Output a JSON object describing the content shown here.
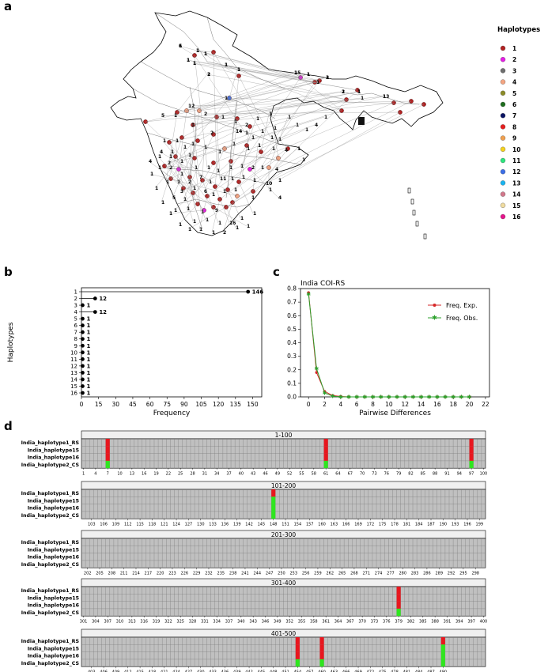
{
  "panel_letters": [
    "a",
    "b",
    "c",
    "d"
  ],
  "map": {
    "legend_title": "Haplotypes",
    "legend": [
      {
        "label": "1",
        "color": "#b22222"
      },
      {
        "label": "2",
        "color": "#e61ee6"
      },
      {
        "label": "3",
        "color": "#6e6e6e"
      },
      {
        "label": "4",
        "color": "#f4a582"
      },
      {
        "label": "5",
        "color": "#8c8c28"
      },
      {
        "label": "6",
        "color": "#1e6e1e"
      },
      {
        "label": "7",
        "color": "#0a1464"
      },
      {
        "label": "8",
        "color": "#e61e1e"
      },
      {
        "label": "9",
        "color": "#f0a050"
      },
      {
        "label": "10",
        "color": "#f5d21e"
      },
      {
        "label": "11",
        "color": "#2de67d"
      },
      {
        "label": "12",
        "color": "#3c6ee6"
      },
      {
        "label": "13",
        "color": "#19b4f0"
      },
      {
        "label": "14",
        "color": "#d2788c"
      },
      {
        "label": "15",
        "color": "#f0dca0"
      },
      {
        "label": "16",
        "color": "#e6148c"
      }
    ],
    "site_labels": [
      "1",
      "1",
      "1",
      "1",
      "1",
      "1",
      "1",
      "2",
      "1",
      "1",
      "3",
      "1",
      "1",
      "1",
      "13",
      "1",
      "5",
      "1",
      "12",
      "1",
      "2",
      "1",
      "2",
      "1",
      "1",
      "2",
      "1",
      "1",
      "1",
      "1",
      "1",
      "1",
      "1",
      "1",
      "4",
      "1",
      "1",
      "1",
      "1",
      "1",
      "1",
      "1",
      "1",
      "1",
      "1",
      "4",
      "1",
      "1",
      "4",
      "1",
      "1",
      "1",
      "1",
      "2",
      "1",
      "1",
      "1",
      "1",
      "1",
      "1",
      "2",
      "1",
      "4",
      "2",
      "1",
      "1",
      "1",
      "1",
      "2",
      "7",
      "1",
      "11",
      "1",
      "1",
      "1",
      "10",
      "1",
      "3",
      "1",
      "1",
      "5",
      "1",
      "6",
      "1",
      "1",
      "1",
      "1",
      "1",
      "4",
      "1",
      "1",
      "1",
      "9",
      "1",
      "1",
      "1",
      "16",
      "1",
      "1",
      "1",
      "1",
      "1",
      "2",
      "1",
      "1",
      "1",
      "1",
      "4",
      "1",
      "1",
      "1",
      "14",
      "1",
      "1",
      "1",
      "6",
      "1",
      "1",
      "1",
      "1",
      "1",
      "1",
      "1",
      "15",
      "1",
      "1",
      "1",
      "2",
      "1",
      "1"
    ]
  },
  "chart_data": [
    {
      "type": "lollipop",
      "ylabel": "Haplotypes",
      "xlabel": "Frequency",
      "categories": [
        "1",
        "2",
        "3",
        "4",
        "5",
        "6",
        "7",
        "8",
        "9",
        "10",
        "11",
        "12",
        "13",
        "14",
        "15",
        "16"
      ],
      "values": [
        146,
        12,
        1,
        12,
        1,
        1,
        1,
        1,
        1,
        1,
        1,
        1,
        1,
        1,
        1,
        1
      ],
      "xticks": [
        0,
        15,
        30,
        45,
        60,
        75,
        90,
        105,
        120,
        135,
        150
      ],
      "xlim": [
        0,
        158
      ]
    },
    {
      "type": "line",
      "title": "India COI-RS",
      "xlabel": "Pairwise Differences",
      "ylabel": "",
      "xlim": [
        -1,
        22.5
      ],
      "ylim": [
        0,
        0.8
      ],
      "xticks": [
        0,
        2,
        4,
        6,
        8,
        10,
        12,
        14,
        16,
        18,
        20,
        22
      ],
      "yticks": [
        0.0,
        0.1,
        0.2,
        0.3,
        0.4,
        0.5,
        0.6,
        0.7,
        0.8
      ],
      "x": [
        0,
        1,
        2,
        3,
        4,
        5,
        6,
        7,
        8,
        9,
        10,
        11,
        12,
        13,
        14,
        15,
        16,
        17,
        18,
        19,
        20
      ],
      "series": [
        {
          "name": "Freq. Exp.",
          "color": "#d62728",
          "marker": "dot",
          "values": [
            0.77,
            0.18,
            0.04,
            0.01,
            0.003,
            0,
            0,
            0,
            0,
            0,
            0,
            0,
            0,
            0,
            0,
            0,
            0,
            0,
            0,
            0,
            0
          ]
        },
        {
          "name": "Freq. Obs.",
          "color": "#2ca02c",
          "marker": "star",
          "values": [
            0.76,
            0.21,
            0.03,
            0.005,
            0,
            0,
            0,
            0,
            0,
            0,
            0,
            0,
            0,
            0,
            0,
            0,
            0,
            0,
            0,
            0,
            0
          ]
        }
      ],
      "legend_position": "upper right"
    },
    {
      "type": "heatmap",
      "rows": [
        "India_haplotype1_RS",
        "India_haplotype15",
        "India_haplotype16",
        "India_haplotype2_CS"
      ],
      "colors": {
        "same": "#c0c0c0",
        "variant": "#e8161e",
        "reference_variant": "#2ee61e"
      },
      "blocks": [
        {
          "title": "1-100",
          "start": 1,
          "tick_labels": [
            "1",
            "4",
            "7",
            "10",
            "13",
            "16",
            "19",
            "22",
            "25",
            "28",
            "31",
            "34",
            "37",
            "40",
            "43",
            "46",
            "49",
            "52",
            "55",
            "58",
            "61",
            "64",
            "67",
            "70",
            "73",
            "76",
            "79",
            "82",
            "85",
            "88",
            "91",
            "94",
            "97",
            "100"
          ],
          "variant_positions": [
            7,
            61,
            97
          ],
          "rows_variant": [
            3,
            3,
            3
          ],
          "rows_green": [
            1,
            1,
            1
          ]
        },
        {
          "title": "101-200",
          "start": 101,
          "tick_labels": [
            "103",
            "106",
            "109",
            "112",
            "115",
            "118",
            "121",
            "124",
            "127",
            "130",
            "133",
            "136",
            "139",
            "142",
            "145",
            "148",
            "151",
            "154",
            "157",
            "160",
            "163",
            "166",
            "169",
            "172",
            "175",
            "178",
            "181",
            "184",
            "187",
            "190",
            "193",
            "196",
            "199"
          ],
          "variant_positions": [
            148
          ],
          "rows_variant": [
            1
          ],
          "rows_green": [
            3
          ]
        },
        {
          "title": "201-300",
          "start": 201,
          "tick_labels": [
            "202",
            "205",
            "208",
            "211",
            "214",
            "217",
            "220",
            "223",
            "226",
            "229",
            "232",
            "235",
            "238",
            "241",
            "244",
            "247",
            "250",
            "253",
            "256",
            "259",
            "262",
            "265",
            "268",
            "271",
            "274",
            "277",
            "280",
            "283",
            "286",
            "289",
            "292",
            "295",
            "298"
          ],
          "variant_positions": [],
          "rows_variant": [],
          "rows_green": []
        },
        {
          "title": "301-400",
          "start": 301,
          "tick_labels": [
            "301",
            "304",
            "307",
            "310",
            "313",
            "316",
            "319",
            "322",
            "325",
            "328",
            "331",
            "334",
            "337",
            "340",
            "343",
            "346",
            "349",
            "352",
            "355",
            "358",
            "361",
            "364",
            "367",
            "370",
            "373",
            "376",
            "379",
            "382",
            "385",
            "388",
            "391",
            "394",
            "397",
            "400"
          ],
          "variant_positions": [
            379
          ],
          "rows_variant": [
            3
          ],
          "rows_green": [
            1
          ]
        },
        {
          "title": "401-500",
          "start": 401,
          "tick_labels": [
            "403",
            "406",
            "409",
            "412",
            "415",
            "418",
            "421",
            "424",
            "427",
            "430",
            "433",
            "436",
            "439",
            "442",
            "445",
            "448",
            "451",
            "454",
            "457",
            "460",
            "463",
            "466",
            "469",
            "472",
            "475",
            "478",
            "481",
            "484",
            "487",
            "490"
          ],
          "variant_positions": [
            454,
            460,
            490
          ],
          "rows_variant": [
            3,
            3,
            1
          ],
          "rows_green": [
            1,
            1,
            3
          ]
        }
      ]
    }
  ]
}
